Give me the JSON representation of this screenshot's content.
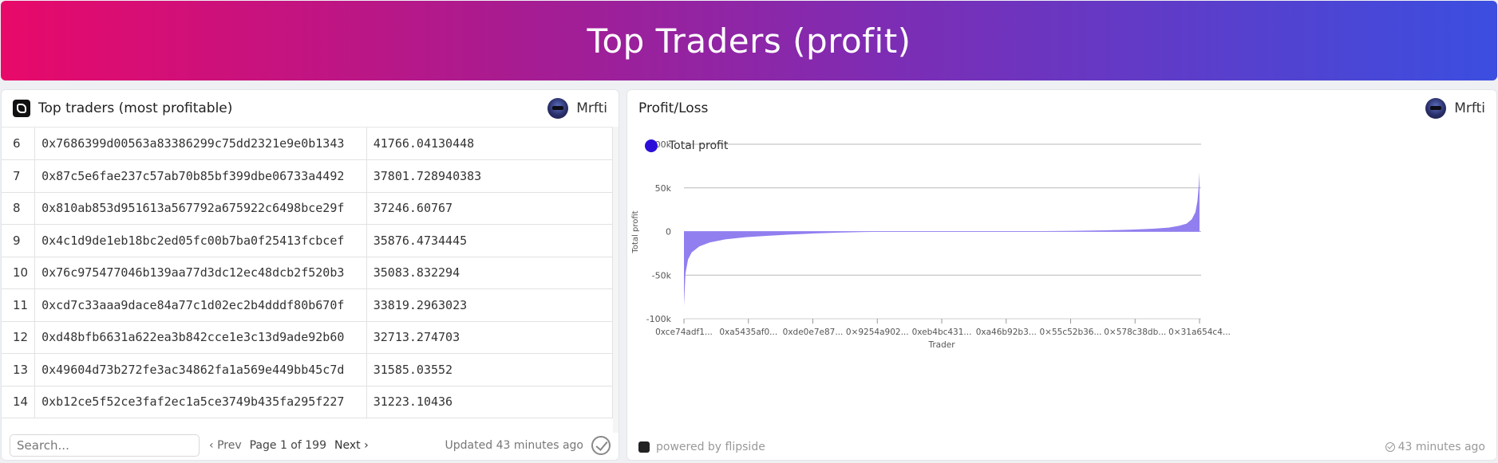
{
  "banner": {
    "title": "Top Traders (profit)"
  },
  "left_panel": {
    "title": "Top traders (most profitable)",
    "author": "Mrfti",
    "rows": [
      {
        "rank": "6",
        "address": "0x7686399d00563a83386299c75dd2321e9e0b1343",
        "value": "41766.04130448"
      },
      {
        "rank": "7",
        "address": "0x87c5e6fae237c57ab70b85bf399dbe06733a4492",
        "value": "37801.728940383"
      },
      {
        "rank": "8",
        "address": "0x810ab853d951613a567792a675922c6498bce29f",
        "value": "37246.60767"
      },
      {
        "rank": "9",
        "address": "0x4c1d9de1eb18bc2ed05fc00b7ba0f25413fcbcef",
        "value": "35876.4734445"
      },
      {
        "rank": "10",
        "address": "0x76c975477046b139aa77d3dc12ec48dcb2f520b3",
        "value": "35083.832294"
      },
      {
        "rank": "11",
        "address": "0xcd7c33aaa9dace84a77c1d02ec2b4dddf80b670f",
        "value": "33819.2963023"
      },
      {
        "rank": "12",
        "address": "0xd48bfb6631a622ea3b842cce1e3c13d9ade92b60",
        "value": "32713.274703"
      },
      {
        "rank": "13",
        "address": "0x49604d73b272fe3ac34862fa1a569e449bb45c7d",
        "value": "31585.03552"
      },
      {
        "rank": "14",
        "address": "0xb12ce5f52ce3faf2ec1a5ce3749b435fa295f227",
        "value": "31223.10436"
      }
    ],
    "footer": {
      "search_placeholder": "Search...",
      "prev_label": "Prev",
      "page_info": "Page 1 of 199",
      "next_label": "Next",
      "updated": "Updated 43 minutes ago"
    }
  },
  "right_panel": {
    "title": "Profit/Loss",
    "author": "Mrfti",
    "powered_by": "powered by flipside",
    "time_ago": "43 minutes ago"
  },
  "colors": {
    "series": "#2b0fd8",
    "area": "#8b78ee"
  },
  "chart_data": {
    "type": "area",
    "series": [
      {
        "name": "Total profit"
      }
    ],
    "xlabel": "Trader",
    "ylabel": "Total profit",
    "ylim": [
      -100000,
      100000
    ],
    "yticks": [
      "100k",
      "50k",
      "0",
      "-50k",
      "-100k"
    ],
    "ytick_values": [
      100000,
      50000,
      0,
      -50000,
      -100000
    ],
    "xticks": [
      "0xce74adf1...",
      "0xa5435af0...",
      "0xde0e7e87...",
      "0×9254a902...",
      "0xeb4bc431...",
      "0xa46b92b3...",
      "0×55c52b36...",
      "0×578c38db...",
      "0×31a654c4..."
    ],
    "profile": [
      [
        0,
        -85000
      ],
      [
        0.3,
        -48000
      ],
      [
        0.8,
        -32000
      ],
      [
        1.5,
        -24000
      ],
      [
        3,
        -17000
      ],
      [
        5,
        -12500
      ],
      [
        8,
        -9000
      ],
      [
        12,
        -6500
      ],
      [
        16,
        -5000
      ],
      [
        20,
        -3600
      ],
      [
        25,
        -2300
      ],
      [
        30,
        -1300
      ],
      [
        35,
        -600
      ],
      [
        40,
        -200
      ],
      [
        45,
        0
      ],
      [
        62,
        0
      ],
      [
        65,
        200
      ],
      [
        70,
        400
      ],
      [
        76,
        800
      ],
      [
        82,
        1400
      ],
      [
        87,
        2200
      ],
      [
        91,
        3200
      ],
      [
        94,
        4500
      ],
      [
        96,
        6500
      ],
      [
        97.5,
        9000
      ],
      [
        98.5,
        14000
      ],
      [
        99.2,
        22000
      ],
      [
        99.6,
        35000
      ],
      [
        99.85,
        52000
      ],
      [
        100,
        68000
      ]
    ],
    "grid": true,
    "legend": "top-left"
  }
}
